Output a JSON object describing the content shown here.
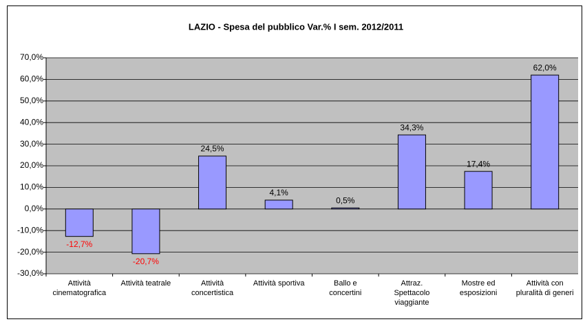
{
  "chart_data": {
    "type": "bar",
    "title": "LAZIO - Spesa del pubblico Var.% I sem. 2012/2011",
    "categories": [
      [
        "Attività",
        "cinematografica"
      ],
      [
        "Attività teatrale"
      ],
      [
        "Attività",
        "concertistica"
      ],
      [
        "Attività sportiva"
      ],
      [
        "Ballo e",
        "concertini"
      ],
      [
        "Attraz.",
        "Spettacolo",
        "viaggiante"
      ],
      [
        "Mostre ed",
        "esposizioni"
      ],
      [
        "Attività con",
        "pluralità di generi"
      ]
    ],
    "values": [
      -12.7,
      -20.7,
      24.5,
      4.1,
      0.5,
      34.3,
      17.4,
      62.0
    ],
    "value_labels": [
      "-12,7%",
      "-20,7%",
      "24,5%",
      "4,1%",
      "0,5%",
      "34,3%",
      "17,4%",
      "62,0%"
    ],
    "color": "#9999ff",
    "negative_label_color": "#ff0000",
    "ylim": [
      -30,
      70
    ],
    "yticks": [
      {
        "value": -30,
        "label": "-30,0%"
      },
      {
        "value": -20,
        "label": "-20,0%"
      },
      {
        "value": -10,
        "label": "-10,0%"
      },
      {
        "value": 0,
        "label": "0,0%"
      },
      {
        "value": 10,
        "label": "10,0%"
      },
      {
        "value": 20,
        "label": "20,0%"
      },
      {
        "value": 30,
        "label": "30,0%"
      },
      {
        "value": 40,
        "label": "40,0%"
      },
      {
        "value": 50,
        "label": "50,0%"
      },
      {
        "value": 60,
        "label": "60,0%"
      },
      {
        "value": 70,
        "label": "70,0%"
      }
    ],
    "grid": true
  }
}
